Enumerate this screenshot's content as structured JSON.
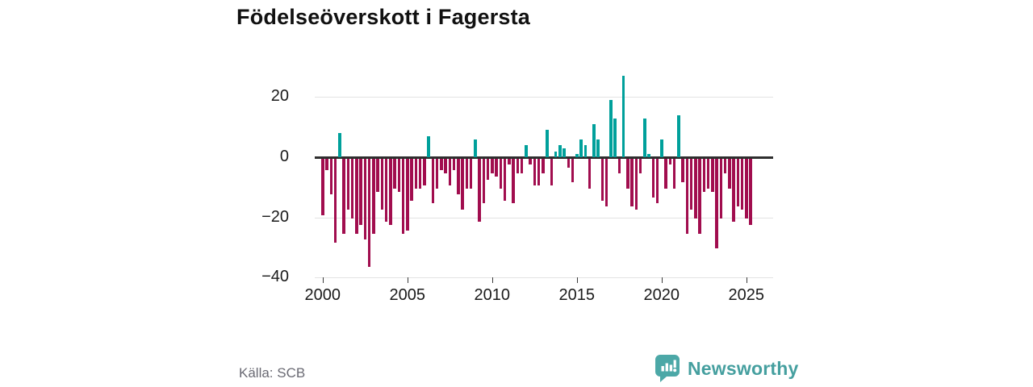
{
  "title": "Födelseöverskott i Fagersta",
  "source": "Källa: SCB",
  "branding": {
    "name": "Newsworthy",
    "icon": "speech-bubble-bar-chart-icon",
    "icon_color": "#4ca8a7",
    "text_color": "#459f9f"
  },
  "colors": {
    "positive": "#00a09b",
    "negative": "#a10d4e",
    "grid": "#e3e3e3",
    "zero_line": "#2e2e2e",
    "axis_text": "#1a1a1a",
    "source_text": "#6a6a73"
  },
  "chart_data": {
    "type": "bar",
    "title": "Födelseöverskott i Fagersta",
    "xlabel": "",
    "ylabel": "",
    "frequency": "quarterly",
    "x_start_year": 2000,
    "x_start_quarter": 1,
    "x_tick_years": [
      2000,
      2005,
      2010,
      2015,
      2020,
      2025
    ],
    "x_tick_labels": [
      "2000",
      "2005",
      "2010",
      "2015",
      "2020",
      "2025"
    ],
    "y_ticks": [
      20,
      0,
      -20,
      -40
    ],
    "y_tick_labels": [
      "20",
      "0",
      "−20",
      "−40"
    ],
    "ylim": [
      -41,
      29
    ],
    "grid": true,
    "legend": false,
    "values": [
      -19,
      -4,
      -12,
      -28,
      8,
      -25,
      -17,
      -20,
      -25,
      -22,
      -27,
      -36,
      -25,
      -11,
      -17,
      -21,
      -22,
      -10,
      -11,
      -25,
      -24,
      -14,
      -10,
      -10,
      -9,
      7,
      -15,
      -10,
      -4,
      -5,
      -9,
      -4,
      -12,
      -17,
      -10,
      -10,
      6,
      -21,
      -15,
      -7,
      -5,
      -6,
      -10,
      -14,
      -2,
      -15,
      -5,
      -5,
      4,
      -2,
      -9,
      -9,
      -5,
      9,
      -9,
      2,
      4,
      3,
      -3,
      -8,
      1,
      6,
      4,
      -10,
      11,
      6,
      -14,
      -16,
      19,
      13,
      -5,
      27,
      -10,
      -16,
      -17,
      -5,
      13,
      1,
      -13,
      -15,
      6,
      -10,
      -2,
      -10,
      14,
      -8,
      -25,
      -17,
      -20,
      -25,
      -11,
      -10,
      -11,
      -30,
      -20,
      -5,
      -10,
      -21,
      -16,
      -17,
      -20,
      -22
    ]
  }
}
